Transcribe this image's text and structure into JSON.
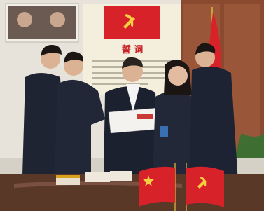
{
  "poster": {
    "title": "誓 词"
  }
}
